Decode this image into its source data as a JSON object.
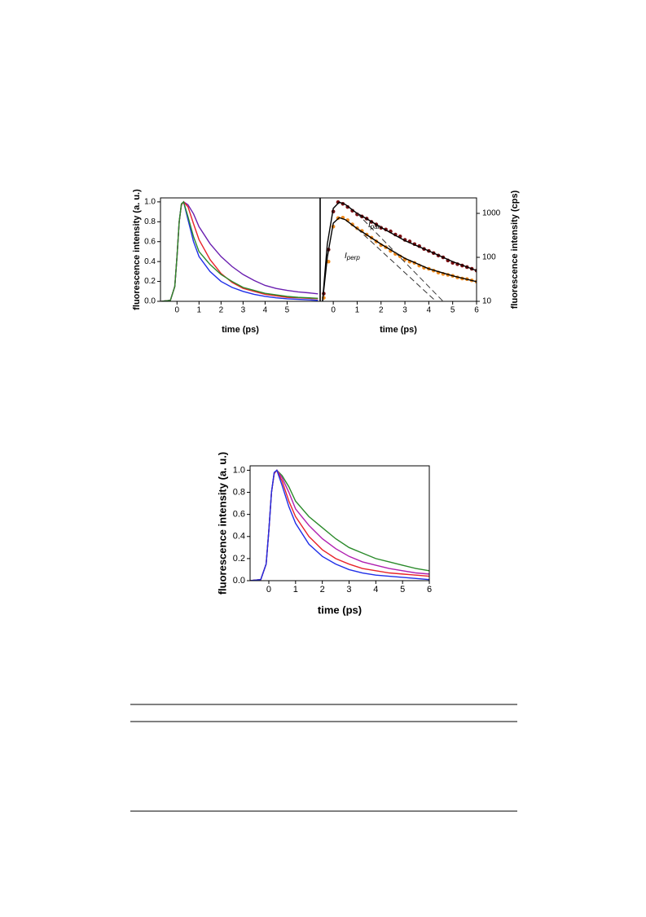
{
  "chart_data": [
    {
      "type": "line",
      "xlabel": "time (ps)",
      "ylabel": "fluorescence intensity (a. u.)",
      "xlim": [
        -0.75,
        6.5
      ],
      "ylim": [
        0,
        1.04
      ],
      "xticks": [
        0,
        1,
        2,
        3,
        4,
        5
      ],
      "yticks": [
        {
          "value": 0,
          "label": "0.0"
        },
        0.2,
        0.4,
        0.6,
        0.8,
        {
          "value": 1,
          "label": "1.0"
        }
      ],
      "x": [
        -0.7,
        -0.3,
        -0.1,
        0,
        0.1,
        0.2,
        0.3,
        0.5,
        0.75,
        1,
        1.5,
        2,
        2.5,
        3,
        3.5,
        4,
        4.5,
        5,
        5.5,
        6,
        6.4
      ],
      "series": [
        {
          "color": "#6a1fb0",
          "values": [
            0,
            0.01,
            0.15,
            0.45,
            0.8,
            0.97,
            1.0,
            0.97,
            0.88,
            0.75,
            0.58,
            0.45,
            0.35,
            0.27,
            0.21,
            0.16,
            0.13,
            0.11,
            0.095,
            0.085,
            0.075
          ]
        },
        {
          "color": "#1f2ee8",
          "values": [
            0,
            0.01,
            0.15,
            0.45,
            0.8,
            0.98,
            1.0,
            0.82,
            0.6,
            0.45,
            0.3,
            0.2,
            0.14,
            0.1,
            0.07,
            0.05,
            0.035,
            0.025,
            0.02,
            0.015,
            0.01
          ]
        },
        {
          "color": "#e8232a",
          "values": [
            0,
            0.01,
            0.15,
            0.45,
            0.8,
            0.97,
            1.0,
            0.95,
            0.78,
            0.62,
            0.42,
            0.28,
            0.19,
            0.13,
            0.1,
            0.07,
            0.055,
            0.04,
            0.035,
            0.03,
            0.025
          ]
        },
        {
          "color": "#2a8a2a",
          "values": [
            0,
            0.01,
            0.15,
            0.45,
            0.8,
            0.98,
            1.0,
            0.85,
            0.65,
            0.5,
            0.37,
            0.27,
            0.2,
            0.14,
            0.11,
            0.08,
            0.065,
            0.05,
            0.04,
            0.035,
            0.03
          ]
        }
      ]
    },
    {
      "type": "line",
      "xlabel": "time (ps)",
      "ylabel": "fluorescence intensity (cps)",
      "y_axis_side": "right",
      "ylog": true,
      "xlim": [
        -0.55,
        6
      ],
      "ylim": [
        10,
        2250
      ],
      "xticks": [
        0,
        1,
        2,
        3,
        4,
        5,
        6
      ],
      "yticks": [
        10,
        100,
        1000
      ],
      "x": [
        -0.4,
        -0.2,
        0,
        0.2,
        0.4,
        0.6,
        0.8,
        1.0,
        1.2,
        1.4,
        1.6,
        1.8,
        2.0,
        2.2,
        2.4,
        2.6,
        2.8,
        3.0,
        3.2,
        3.4,
        3.6,
        3.8,
        4.0,
        4.2,
        4.4,
        4.6,
        4.8,
        5.0,
        5.2,
        5.4,
        5.6,
        5.8,
        6.0
      ],
      "series": [
        {
          "style": "markers",
          "color": "#7a0f12",
          "values": [
            15,
            150,
            1100,
            1800,
            1650,
            1400,
            1150,
            950,
            850,
            760,
            640,
            560,
            470,
            430,
            390,
            330,
            300,
            250,
            230,
            200,
            180,
            155,
            140,
            125,
            110,
            100,
            85,
            75,
            70,
            65,
            60,
            55,
            50
          ]
        },
        {
          "style": "markers",
          "color": "#f08a1c",
          "values": [
            12,
            80,
            500,
            780,
            800,
            700,
            560,
            460,
            400,
            330,
            280,
            230,
            190,
            170,
            140,
            120,
            105,
            90,
            80,
            75,
            65,
            58,
            55,
            50,
            45,
            42,
            40,
            38,
            35,
            33,
            32,
            30,
            28
          ]
        },
        {
          "style": "line",
          "color": "#000000",
          "x": [
            -0.45,
            -0.25,
            0,
            0.25,
            0.5,
            1,
            1.5,
            2,
            3,
            4,
            5,
            6
          ],
          "values": [
            10,
            200,
            1300,
            1800,
            1600,
            1000,
            700,
            480,
            240,
            140,
            80,
            50
          ]
        },
        {
          "style": "line",
          "color": "#000000",
          "x": [
            -0.45,
            -0.25,
            0,
            0.25,
            0.5,
            1,
            1.5,
            2,
            3,
            4,
            5,
            6
          ],
          "values": [
            10,
            100,
            600,
            800,
            720,
            450,
            300,
            200,
            95,
            55,
            38,
            28
          ]
        },
        {
          "style": "dashed",
          "color": "#333333",
          "x": [
            1,
            4.6
          ],
          "values": [
            1000,
            10
          ]
        },
        {
          "style": "dashed",
          "color": "#333333",
          "x": [
            1,
            4.3
          ],
          "values": [
            450,
            10
          ]
        }
      ],
      "annotations": [
        {
          "main": "I",
          "sub": "par"
        },
        {
          "main": "I",
          "sub": "perp"
        }
      ]
    },
    {
      "type": "line",
      "xlabel": "time (ps)",
      "ylabel": "fluorescence intensity (a. u.)",
      "xlim": [
        -0.7,
        6
      ],
      "ylim": [
        0,
        1.04
      ],
      "xticks": [
        0,
        1,
        2,
        3,
        4,
        5,
        6
      ],
      "yticks": [
        {
          "value": 0,
          "label": "0.0"
        },
        0.2,
        0.4,
        0.6,
        0.8,
        {
          "value": 1,
          "label": "1.0"
        }
      ],
      "x": [
        -0.7,
        -0.3,
        -0.1,
        0,
        0.1,
        0.2,
        0.3,
        0.5,
        0.75,
        1,
        1.5,
        2,
        2.5,
        3,
        3.5,
        4,
        4.5,
        5,
        5.5,
        6
      ],
      "series": [
        {
          "color": "#2a8a2a",
          "values": [
            0,
            0.01,
            0.15,
            0.45,
            0.8,
            0.97,
            1.0,
            0.95,
            0.85,
            0.72,
            0.58,
            0.48,
            0.38,
            0.3,
            0.25,
            0.2,
            0.17,
            0.14,
            0.11,
            0.09
          ]
        },
        {
          "color": "#b01fb0",
          "values": [
            0,
            0.01,
            0.15,
            0.45,
            0.8,
            0.97,
            1.0,
            0.93,
            0.8,
            0.65,
            0.5,
            0.38,
            0.29,
            0.22,
            0.17,
            0.14,
            0.11,
            0.09,
            0.07,
            0.06
          ]
        },
        {
          "color": "#e8232a",
          "values": [
            0,
            0.01,
            0.15,
            0.45,
            0.8,
            0.97,
            1.0,
            0.9,
            0.72,
            0.58,
            0.4,
            0.28,
            0.2,
            0.15,
            0.11,
            0.09,
            0.07,
            0.06,
            0.05,
            0.04
          ]
        },
        {
          "color": "#1f2ee8",
          "values": [
            0,
            0.01,
            0.15,
            0.45,
            0.8,
            0.98,
            1.0,
            0.86,
            0.67,
            0.52,
            0.33,
            0.22,
            0.15,
            0.1,
            0.07,
            0.05,
            0.04,
            0.03,
            0.02,
            0.01
          ]
        }
      ]
    }
  ]
}
